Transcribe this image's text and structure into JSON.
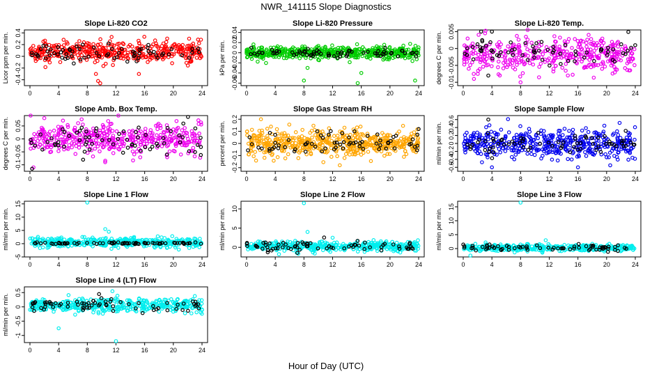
{
  "page": {
    "title": "NWR_141115  Slope Diagnostics",
    "xlabel": "Hour of Day (UTC)"
  },
  "chart_data": [
    {
      "type": "scatter",
      "title": "Slope Li-820 CO2",
      "ylabel": "Licor ppm per min.",
      "xlim": [
        0,
        24
      ],
      "ylim": [
        -0.5,
        0.45
      ],
      "yticks": [
        -0.4,
        -0.2,
        0.0,
        0.2,
        0.4
      ],
      "xticks": [
        0,
        4,
        8,
        12,
        16,
        20,
        24
      ],
      "series": [
        {
          "color": "#ff0000",
          "center": 0.08,
          "spread": 0.09,
          "n": 420,
          "outliers": [
            [
              9.5,
              -0.42
            ],
            [
              9.8,
              -0.46
            ],
            [
              15.2,
              -0.3
            ],
            [
              9.2,
              -0.3
            ]
          ]
        },
        {
          "color": "#000000",
          "center": 0.06,
          "spread": 0.07,
          "n": 70,
          "outliers": []
        }
      ]
    },
    {
      "type": "scatter",
      "title": "Slope Li-820 Pressure",
      "ylabel": "kPa per min.",
      "xlim": [
        0,
        24
      ],
      "ylim": [
        -0.065,
        0.045
      ],
      "yticks": [
        -0.06,
        -0.04,
        -0.02,
        0.0,
        0.02,
        0.04
      ],
      "xticks": [
        0,
        4,
        8,
        12,
        16,
        20,
        24
      ],
      "series": [
        {
          "color": "#00cc00",
          "center": 0.0,
          "spread": 0.006,
          "n": 520,
          "outliers": [
            [
              8.0,
              -0.055
            ],
            [
              15.5,
              -0.06
            ],
            [
              23.5,
              -0.055
            ],
            [
              16.0,
              -0.04
            ],
            [
              8.5,
              -0.03
            ]
          ]
        },
        {
          "color": "#000000",
          "center": 0.0,
          "spread": 0.004,
          "n": 70,
          "outliers": []
        }
      ]
    },
    {
      "type": "scatter",
      "title": "Slope Li-820 Temp.",
      "ylabel": "degrees C per min.",
      "xlim": [
        0,
        24
      ],
      "ylim": [
        -0.011,
        0.0055
      ],
      "yticks": [
        -0.01,
        -0.005,
        0.0,
        0.005
      ],
      "xticks": [
        0,
        4,
        8,
        12,
        16,
        20,
        24
      ],
      "series": [
        {
          "color": "#ee00ee",
          "center": -0.002,
          "spread": 0.0026,
          "n": 420,
          "outliers": [
            [
              1.5,
              -0.009
            ],
            [
              8.0,
              -0.01
            ]
          ]
        },
        {
          "color": "#000000",
          "center": -0.001,
          "spread": 0.0022,
          "n": 70,
          "outliers": [
            [
              2.5,
              0.005
            ],
            [
              4.0,
              0.005
            ],
            [
              3.5,
              -0.008
            ]
          ]
        }
      ]
    },
    {
      "type": "scatter",
      "title": "Slope Amb. Box Temp.",
      "ylabel": "degrees C per min.",
      "xlim": [
        0,
        24
      ],
      "ylim": [
        -0.125,
        0.09
      ],
      "yticks": [
        -0.1,
        -0.05,
        0.0,
        0.05
      ],
      "xticks": [
        0,
        4,
        8,
        12,
        16,
        20,
        24
      ],
      "series": [
        {
          "color": "#ee00ee",
          "center": 0.0,
          "spread": 0.03,
          "n": 420,
          "outliers": [
            [
              2.0,
              0.08
            ],
            [
              0.5,
              -0.11
            ]
          ]
        },
        {
          "color": "#000000",
          "center": -0.005,
          "spread": 0.028,
          "n": 70,
          "outliers": [
            [
              0.3,
              -0.115
            ]
          ]
        }
      ]
    },
    {
      "type": "scatter",
      "title": "Slope Gas Stream RH",
      "ylabel": "percent per min.",
      "xlim": [
        0,
        24
      ],
      "ylim": [
        -0.23,
        0.23
      ],
      "yticks": [
        -0.2,
        -0.1,
        0.0,
        0.1,
        0.2
      ],
      "xticks": [
        0,
        4,
        8,
        12,
        16,
        20,
        24
      ],
      "series": [
        {
          "color": "#ffa500",
          "center": 0.0,
          "spread": 0.055,
          "n": 520,
          "outliers": [
            [
              2.0,
              0.2
            ],
            [
              13.0,
              -0.18
            ]
          ]
        },
        {
          "color": "#000000",
          "center": 0.0,
          "spread": 0.05,
          "n": 70,
          "outliers": []
        }
      ]
    },
    {
      "type": "scatter",
      "title": "Slope Sample Flow",
      "ylabel": "ml/min per min.",
      "xlim": [
        0,
        24
      ],
      "ylim": [
        -0.7,
        0.7
      ],
      "yticks": [
        -0.6,
        -0.4,
        -0.2,
        0.0,
        0.2,
        0.4,
        0.6
      ],
      "xticks": [
        0,
        4,
        8,
        12,
        16,
        20,
        24
      ],
      "series": [
        {
          "color": "#0000ee",
          "center": 0.0,
          "spread": 0.18,
          "n": 460,
          "outliers": [
            [
              4.0,
              -0.6
            ],
            [
              16.0,
              -0.6
            ],
            [
              20.5,
              -0.55
            ]
          ]
        },
        {
          "color": "#000000",
          "center": 0.0,
          "spread": 0.12,
          "n": 70,
          "outliers": [
            [
              3.5,
              0.6
            ]
          ]
        }
      ]
    },
    {
      "type": "scatter",
      "title": "Slope Line 1 Flow",
      "ylabel": "ml/min per min.",
      "xlim": [
        0,
        24
      ],
      "ylim": [
        -5,
        16
      ],
      "yticks": [
        -5,
        0,
        5,
        10,
        15
      ],
      "xticks": [
        0,
        4,
        8,
        12,
        16,
        20,
        24
      ],
      "series": [
        {
          "color": "#00eeee",
          "center": 0.5,
          "spread": 0.9,
          "n": 420,
          "outliers": [
            [
              8.0,
              15.5
            ],
            [
              10.5,
              5.5
            ],
            [
              11.0,
              4.5
            ]
          ]
        },
        {
          "color": "#000000",
          "center": 0.2,
          "spread": 0.2,
          "n": 70,
          "outliers": []
        }
      ]
    },
    {
      "type": "scatter",
      "title": "Slope Line 2 Flow",
      "ylabel": "ml/min per min.",
      "xlim": [
        0,
        24
      ],
      "ylim": [
        -2.5,
        12
      ],
      "yticks": [
        0,
        5,
        10
      ],
      "xticks": [
        0,
        4,
        8,
        12,
        16,
        20,
        24
      ],
      "series": [
        {
          "color": "#00eeee",
          "center": 0.3,
          "spread": 0.6,
          "n": 420,
          "outliers": [
            [
              8.0,
              11.5
            ],
            [
              12.0,
              2.5
            ],
            [
              8.5,
              4.0
            ]
          ]
        },
        {
          "color": "#000000",
          "center": 0.3,
          "spread": 0.6,
          "n": 70,
          "outliers": []
        }
      ]
    },
    {
      "type": "scatter",
      "title": "Slope Line 3 Flow",
      "ylabel": "ml/min per min.",
      "xlim": [
        0,
        24
      ],
      "ylim": [
        -3,
        17
      ],
      "yticks": [
        0,
        5,
        10,
        15
      ],
      "xticks": [
        0,
        4,
        8,
        12,
        16,
        20,
        24
      ],
      "series": [
        {
          "color": "#00eeee",
          "center": 0.3,
          "spread": 0.6,
          "n": 420,
          "outliers": [
            [
              8.0,
              16.5
            ],
            [
              11.5,
              3.0
            ],
            [
              1.0,
              -2.5
            ]
          ]
        },
        {
          "color": "#000000",
          "center": 0.3,
          "spread": 0.6,
          "n": 70,
          "outliers": []
        }
      ]
    },
    {
      "type": "scatter",
      "title": "Slope Line 4 (LT) Flow",
      "ylabel": "ml/min per min.",
      "xlim": [
        0,
        24
      ],
      "ylim": [
        -1.25,
        0.7
      ],
      "yticks": [
        -1.0,
        -0.5,
        0.0,
        0.5
      ],
      "xticks": [
        0,
        4,
        8,
        12,
        16,
        20,
        24
      ],
      "series": [
        {
          "color": "#00eeee",
          "center": 0.05,
          "spread": 0.12,
          "n": 420,
          "outliers": [
            [
              4.0,
              -0.75
            ],
            [
              12.0,
              -1.2
            ],
            [
              11.5,
              0.55
            ]
          ]
        },
        {
          "color": "#000000",
          "center": 0.05,
          "spread": 0.11,
          "n": 70,
          "outliers": []
        }
      ]
    }
  ]
}
